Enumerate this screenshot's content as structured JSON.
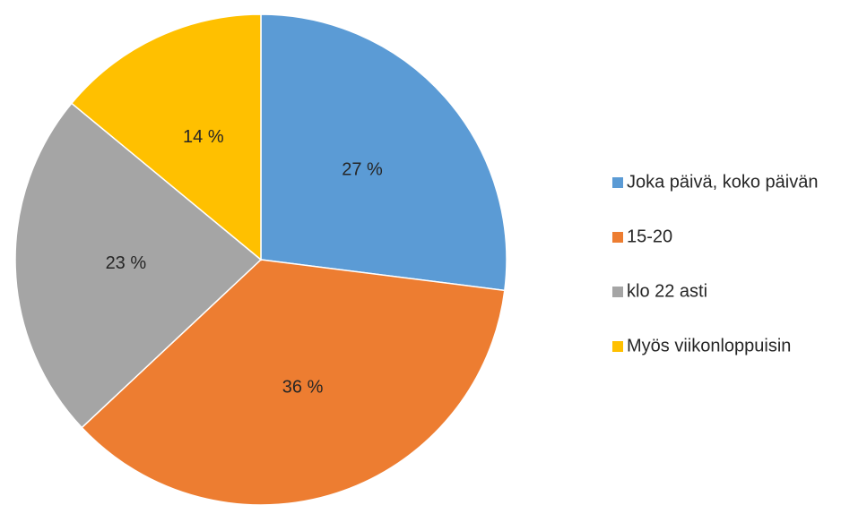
{
  "chart_data": {
    "type": "pie",
    "categories": [
      "Joka päivä, koko päivän",
      "15-20",
      "klo 22 asti",
      "Myös viikonloppuisin"
    ],
    "values": [
      27,
      36,
      23,
      14
    ],
    "value_labels": [
      "27 %",
      "36 %",
      "23 %",
      "14 %"
    ],
    "colors": [
      "#5b9bd5",
      "#ed7d31",
      "#a5a5a5",
      "#ffc000"
    ],
    "legend": "right"
  }
}
